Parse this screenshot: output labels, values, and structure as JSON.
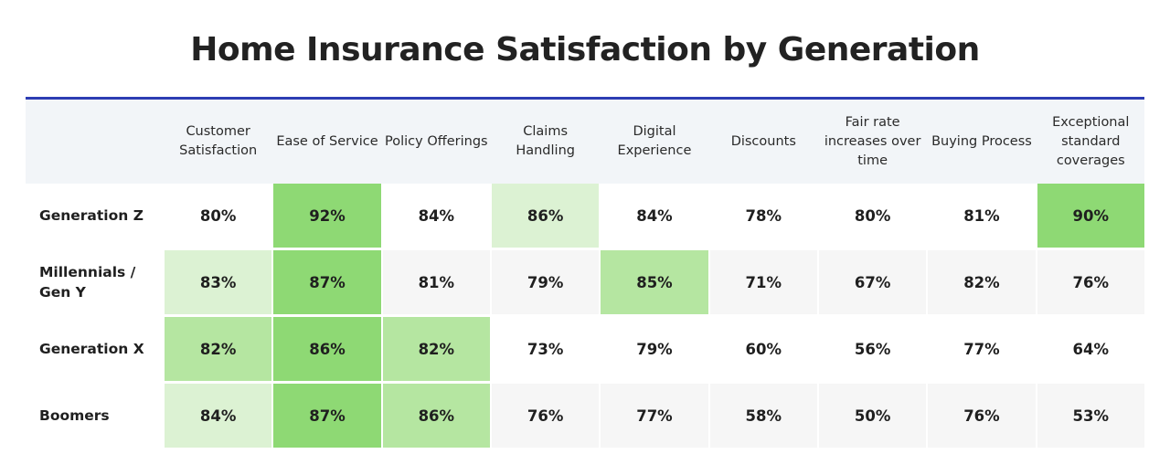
{
  "chart_data": {
    "type": "heatmap",
    "title": "Home Insurance Satisfaction by Generation",
    "columns": [
      "Customer Satisfaction",
      "Ease of Service",
      "Policy Offerings",
      "Claims Handling",
      "Digital Experience",
      "Discounts",
      "Fair rate increases over time",
      "Buying Process",
      "Exceptional standard coverages"
    ],
    "rows": [
      {
        "label": "Generation Z",
        "values": [
          "80%",
          "92%",
          "84%",
          "86%",
          "84%",
          "78%",
          "80%",
          "81%",
          "90%"
        ],
        "shade": [
          0,
          3,
          0,
          1,
          0,
          0,
          0,
          0,
          3
        ]
      },
      {
        "label": "Millennials / Gen Y",
        "values": [
          "83%",
          "87%",
          "81%",
          "79%",
          "85%",
          "71%",
          "67%",
          "82%",
          "76%"
        ],
        "shade": [
          1,
          3,
          0,
          0,
          2,
          0,
          0,
          0,
          0
        ]
      },
      {
        "label": "Generation X",
        "values": [
          "82%",
          "86%",
          "82%",
          "73%",
          "79%",
          "60%",
          "56%",
          "77%",
          "64%"
        ],
        "shade": [
          2,
          3,
          2,
          0,
          0,
          0,
          0,
          0,
          0
        ]
      },
      {
        "label": "Boomers",
        "values": [
          "84%",
          "87%",
          "86%",
          "76%",
          "77%",
          "58%",
          "50%",
          "76%",
          "53%"
        ],
        "shade": [
          1,
          3,
          2,
          0,
          0,
          0,
          0,
          0,
          0
        ]
      }
    ],
    "colors": {
      "accent_line": "#2d3db3",
      "header_bg": "#f2f5f8",
      "shade_1": "#dcf2d3",
      "shade_2": "#b5e6a1",
      "shade_3": "#8ed974",
      "alt_row": "#f6f6f6"
    }
  }
}
